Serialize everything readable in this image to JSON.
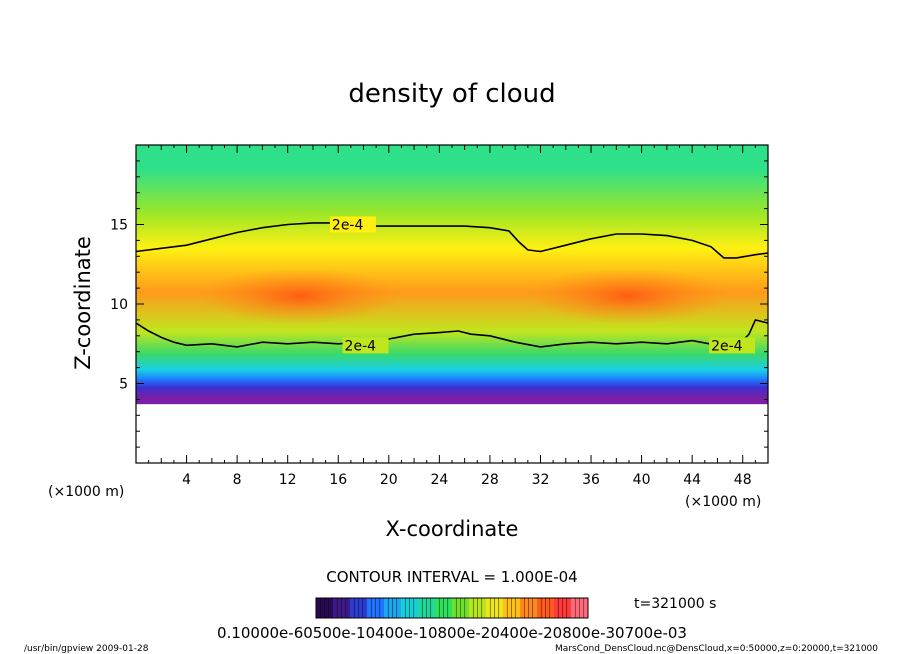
{
  "chart_data": {
    "type": "heatmap",
    "title": "density of cloud",
    "xlabel": "X-coordinate",
    "ylabel": "Z-coordinate",
    "x_unit_label": "(×1000 m)",
    "z_unit_label": "(×1000 m)",
    "xlim": [
      0,
      50
    ],
    "ylim": [
      0,
      20
    ],
    "x_ticks": [
      4,
      8,
      12,
      16,
      20,
      24,
      28,
      32,
      36,
      40,
      44,
      48
    ],
    "x_tick_labels": [
      "4",
      "8",
      "12",
      "16",
      "20",
      "24",
      "28",
      "32",
      "36",
      "40",
      "44",
      "48"
    ],
    "y_ticks": [
      5,
      10,
      15
    ],
    "y_tick_labels": [
      "5",
      "10",
      "15"
    ],
    "contours": [
      {
        "level_label": "2e-4",
        "label_positions": [
          [
            15.5,
            15.0
          ]
        ],
        "points": [
          [
            0,
            13.3
          ],
          [
            2,
            13.5
          ],
          [
            4,
            13.7
          ],
          [
            6,
            14.1
          ],
          [
            8,
            14.5
          ],
          [
            10,
            14.8
          ],
          [
            12,
            15.0
          ],
          [
            14,
            15.1
          ],
          [
            16,
            15.1
          ],
          [
            18,
            14.9
          ],
          [
            20,
            14.9
          ],
          [
            22,
            14.9
          ],
          [
            24,
            14.9
          ],
          [
            26,
            14.9
          ],
          [
            28,
            14.8
          ],
          [
            29.5,
            14.6
          ],
          [
            30.3,
            13.9
          ],
          [
            31,
            13.4
          ],
          [
            32,
            13.3
          ],
          [
            34,
            13.7
          ],
          [
            36,
            14.1
          ],
          [
            38,
            14.4
          ],
          [
            40,
            14.4
          ],
          [
            42,
            14.3
          ],
          [
            44,
            14.0
          ],
          [
            45.5,
            13.6
          ],
          [
            46.5,
            12.9
          ],
          [
            47.5,
            12.9
          ],
          [
            49,
            13.1
          ],
          [
            50,
            13.2
          ]
        ]
      },
      {
        "level_label": "2e-4",
        "label_positions": [
          [
            16.5,
            7.4
          ],
          [
            45.5,
            7.4
          ]
        ],
        "points": [
          [
            0,
            8.8
          ],
          [
            1,
            8.3
          ],
          [
            2,
            7.9
          ],
          [
            3,
            7.6
          ],
          [
            4,
            7.4
          ],
          [
            6,
            7.5
          ],
          [
            8,
            7.3
          ],
          [
            10,
            7.6
          ],
          [
            12,
            7.5
          ],
          [
            14,
            7.6
          ],
          [
            16,
            7.5
          ],
          [
            18,
            7.6
          ],
          [
            20,
            7.8
          ],
          [
            22,
            8.1
          ],
          [
            24,
            8.2
          ],
          [
            25.5,
            8.3
          ],
          [
            26.5,
            8.1
          ],
          [
            28,
            8.0
          ],
          [
            30,
            7.6
          ],
          [
            32,
            7.3
          ],
          [
            34,
            7.5
          ],
          [
            36,
            7.6
          ],
          [
            38,
            7.5
          ],
          [
            40,
            7.6
          ],
          [
            42,
            7.5
          ],
          [
            44,
            7.7
          ],
          [
            46,
            7.4
          ],
          [
            47.5,
            7.3
          ],
          [
            48.5,
            8.1
          ],
          [
            49,
            9.0
          ],
          [
            50,
            8.8
          ]
        ]
      }
    ],
    "color_fill": {
      "cloud_base_km": 3.7,
      "layers": [
        {
          "z_from": 3.7,
          "z_to": 4.5,
          "color": "#7a1fa6"
        },
        {
          "z_from": 4.5,
          "z_to": 5.0,
          "color": "#3b2fd0"
        },
        {
          "z_from": 5.0,
          "z_to": 5.5,
          "color": "#1e7bff"
        },
        {
          "z_from": 5.5,
          "z_to": 6.2,
          "color": "#18d1e8"
        },
        {
          "z_from": 6.2,
          "z_to": 7.5,
          "color": "#39d86a"
        },
        {
          "z_from": 7.5,
          "z_to": 9.0,
          "color": "#bfe61f"
        },
        {
          "z_from": 9.0,
          "z_to": 12.5,
          "color": "#ff9a1a"
        },
        {
          "z_from": 12.5,
          "z_to": 14.5,
          "color": "#fff012"
        },
        {
          "z_from": 14.5,
          "z_to": 17.0,
          "color": "#9be628"
        },
        {
          "z_from": 17.0,
          "z_to": 20.0,
          "color": "#2ee08a"
        }
      ],
      "cores": [
        {
          "x": 13,
          "z": 10.5,
          "color": "#ff5a12"
        },
        {
          "x": 39,
          "z": 10.5,
          "color": "#ff5a12"
        }
      ]
    },
    "contour_interval_text": "CONTOUR INTERVAL = 1.000E-04",
    "time_label": "t=321000 s",
    "colorbar": {
      "label_text": "0.10000e-60500e-10400e-10800e-20400e-20800e-30700e-03",
      "colors": [
        "#2a0a55",
        "#3c1a8a",
        "#2b3ccf",
        "#1f73ff",
        "#1ea6f0",
        "#18cfd8",
        "#1fd89a",
        "#2ee05a",
        "#6fe030",
        "#b7e620",
        "#efe61a",
        "#ffc01a",
        "#ff8a1a",
        "#ff5a20",
        "#ff3a3a",
        "#ff6a78"
      ]
    },
    "footer_left": "/usr/bin/gpview   2009-01-28",
    "footer_right": "MarsCond_DensCloud.nc@DensCloud,x=0:50000,z=0:20000,t=321000"
  }
}
